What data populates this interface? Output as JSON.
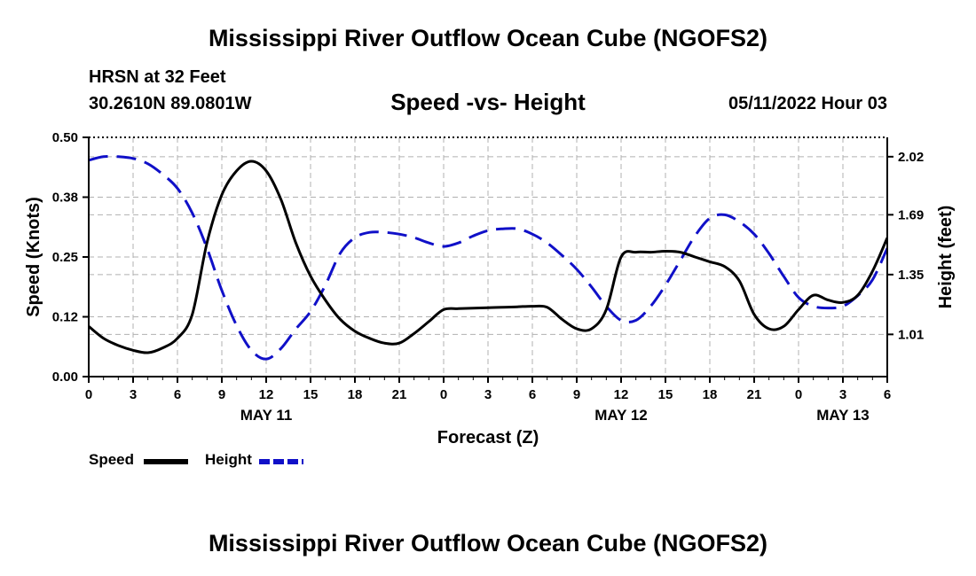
{
  "title": "Mississippi River Outflow Ocean Cube (NGOFS2)",
  "footer_title": "Mississippi River Outflow Ocean Cube (NGOFS2)",
  "station": "HRSN at 32 Feet",
  "coordinates": "30.2610N  89.0801W",
  "subtitle": "Speed -vs- Height",
  "datetime": "05/11/2022 Hour 03",
  "legend": {
    "speed": "Speed",
    "height": "Height"
  },
  "colors": {
    "speed": "#000000",
    "height": "#1010c8",
    "grid": "#b0b0b0"
  },
  "chart_data": {
    "type": "line",
    "title": "Speed -vs- Height",
    "xlabel": "Forecast (Z)",
    "ylabel": "Speed (Knots)",
    "y2label": "Height (feet)",
    "xlim": [
      0,
      54
    ],
    "ylim": [
      0,
      0.5
    ],
    "y2lim": [
      0.77,
      2.13
    ],
    "x_ticks": [
      0,
      3,
      6,
      9,
      12,
      15,
      18,
      21,
      24,
      27,
      30,
      33,
      36,
      39,
      42,
      45,
      48,
      51,
      54
    ],
    "x_tick_labels": [
      "0",
      "3",
      "6",
      "9",
      "12",
      "15",
      "18",
      "21",
      "0",
      "3",
      "6",
      "9",
      "12",
      "15",
      "18",
      "21",
      "0",
      "3",
      "6"
    ],
    "date_labels": [
      {
        "x": 12,
        "label": "MAY 11"
      },
      {
        "x": 36,
        "label": "MAY 12"
      },
      {
        "x": 51,
        "label": "MAY 13"
      }
    ],
    "y_ticks": [
      0.0,
      0.125,
      0.25,
      0.375,
      0.5
    ],
    "y_tick_labels": [
      "0.00",
      "0.12",
      "0.25",
      "0.38",
      "0.50"
    ],
    "y2_ticks": [
      1.01,
      1.35,
      1.69,
      2.02
    ],
    "y2_tick_labels": [
      "1.01",
      "1.35",
      "1.69",
      "2.02"
    ],
    "grid": true,
    "legend_position": "bottom-left",
    "series": [
      {
        "name": "Speed",
        "axis": "left",
        "style": "solid",
        "x": [
          0,
          1,
          2,
          3,
          4,
          5,
          6,
          7,
          8,
          9,
          10,
          11,
          12,
          13,
          14,
          15,
          16,
          17,
          18,
          19,
          20,
          21,
          22,
          23,
          24,
          25,
          26,
          27,
          28,
          29,
          30,
          31,
          32,
          33,
          34,
          35,
          36,
          37,
          38,
          39,
          40,
          41,
          42,
          43,
          44,
          45,
          46,
          47,
          48,
          49,
          50,
          51,
          52,
          53,
          54
        ],
        "values": [
          0.105,
          0.08,
          0.065,
          0.055,
          0.05,
          0.06,
          0.08,
          0.13,
          0.28,
          0.38,
          0.43,
          0.45,
          0.43,
          0.37,
          0.28,
          0.21,
          0.16,
          0.12,
          0.095,
          0.08,
          0.07,
          0.07,
          0.09,
          0.115,
          0.14,
          0.142,
          0.143,
          0.144,
          0.145,
          0.146,
          0.147,
          0.145,
          0.12,
          0.1,
          0.1,
          0.14,
          0.25,
          0.26,
          0.26,
          0.262,
          0.26,
          0.25,
          0.24,
          0.23,
          0.2,
          0.13,
          0.1,
          0.105,
          0.14,
          0.17,
          0.16,
          0.155,
          0.17,
          0.22,
          0.29
        ]
      },
      {
        "name": "Height",
        "axis": "right",
        "style": "dashed",
        "x": [
          0,
          1,
          2,
          3,
          4,
          5,
          6,
          7,
          8,
          9,
          10,
          11,
          12,
          13,
          14,
          15,
          16,
          17,
          18,
          19,
          20,
          21,
          22,
          23,
          24,
          25,
          26,
          27,
          28,
          29,
          30,
          31,
          32,
          33,
          34,
          35,
          36,
          37,
          38,
          39,
          40,
          41,
          42,
          43,
          44,
          45,
          46,
          47,
          48,
          49,
          50,
          51,
          52,
          53,
          54
        ],
        "values": [
          2.0,
          2.02,
          2.02,
          2.01,
          1.98,
          1.92,
          1.84,
          1.7,
          1.5,
          1.26,
          1.06,
          0.92,
          0.87,
          0.93,
          1.04,
          1.14,
          1.29,
          1.47,
          1.56,
          1.59,
          1.59,
          1.58,
          1.56,
          1.53,
          1.51,
          1.53,
          1.57,
          1.6,
          1.61,
          1.61,
          1.58,
          1.53,
          1.46,
          1.38,
          1.28,
          1.17,
          1.09,
          1.09,
          1.17,
          1.29,
          1.43,
          1.57,
          1.67,
          1.69,
          1.65,
          1.58,
          1.47,
          1.34,
          1.22,
          1.17,
          1.16,
          1.17,
          1.23,
          1.32,
          1.5
        ]
      }
    ]
  }
}
